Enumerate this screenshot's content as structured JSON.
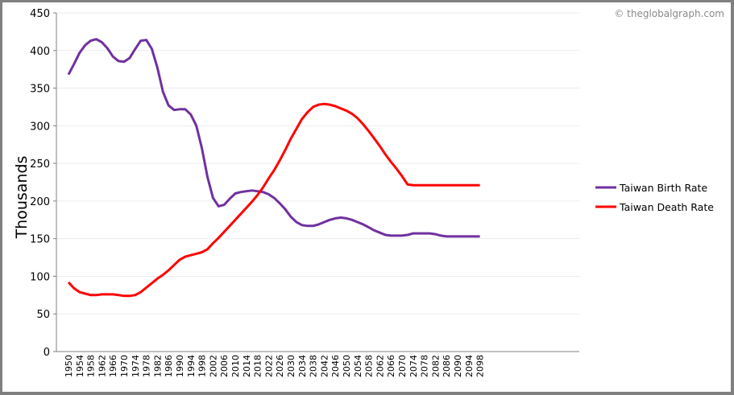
{
  "credit": "© theglobalgraph.com",
  "colors": {
    "birth": "#7030A0",
    "death": "#FF0000",
    "grid": "#EBEBEB",
    "axis": "#808080",
    "frame": "#808080"
  },
  "legend": [
    {
      "label": "Taiwan Birth Rate",
      "color": "#7030A0"
    },
    {
      "label": "Taiwan Death Rate",
      "color": "#FF0000"
    }
  ],
  "chart_data": {
    "type": "line",
    "title": "",
    "xlabel": "",
    "ylabel": "Thousands",
    "ylim": [
      0,
      450
    ],
    "yticks": [
      0,
      50,
      100,
      150,
      200,
      250,
      300,
      350,
      400,
      450
    ],
    "xticks": [
      "1950",
      "1954",
      "1958",
      "1962",
      "1966",
      "1970",
      "1974",
      "1978",
      "1982",
      "1986",
      "1990",
      "1994",
      "1998",
      "2002",
      "2006",
      "2010",
      "2014",
      "2018",
      "2022",
      "2026",
      "2030",
      "2034",
      "2038",
      "2042",
      "2046",
      "2050",
      "2054",
      "2058",
      "2062",
      "2066",
      "2070",
      "2074",
      "2078",
      "2082",
      "2086",
      "2090",
      "2094",
      "2098"
    ],
    "grid": true,
    "legend_position": "right",
    "x": [
      1950,
      1952,
      1954,
      1956,
      1958,
      1960,
      1962,
      1964,
      1966,
      1968,
      1970,
      1972,
      1974,
      1976,
      1978,
      1980,
      1982,
      1984,
      1986,
      1988,
      1990,
      1992,
      1994,
      1996,
      1998,
      2000,
      2002,
      2004,
      2006,
      2008,
      2010,
      2012,
      2014,
      2016,
      2018,
      2020,
      2022,
      2024,
      2026,
      2028,
      2030,
      2032,
      2034,
      2036,
      2038,
      2040,
      2042,
      2044,
      2046,
      2048,
      2050,
      2052,
      2054,
      2056,
      2058,
      2060,
      2062,
      2064,
      2066,
      2068,
      2070,
      2072,
      2074,
      2076,
      2078,
      2080,
      2082,
      2084,
      2086,
      2088,
      2090,
      2092,
      2094,
      2096,
      2098,
      2100
    ],
    "series": [
      {
        "name": "Taiwan Birth Rate",
        "values": [
          368,
          382,
          397,
          407,
          413,
          415,
          411,
          403,
          392,
          386,
          385,
          390,
          402,
          413,
          414,
          402,
          377,
          345,
          327,
          321,
          322,
          322,
          315,
          300,
          270,
          232,
          204,
          193,
          195,
          203,
          210,
          212,
          213,
          214,
          213,
          212,
          209,
          204,
          197,
          189,
          179,
          172,
          168,
          167,
          167,
          169,
          172,
          175,
          177,
          178,
          177,
          175,
          172,
          169,
          165,
          161,
          158,
          155,
          154,
          154,
          154,
          155,
          157,
          157,
          157,
          157,
          156,
          154,
          153,
          153,
          153,
          153,
          153,
          153,
          153,
          153
        ]
      },
      {
        "name": "Taiwan Death Rate",
        "values": [
          92,
          84,
          79,
          77,
          75,
          75,
          76,
          76,
          76,
          75,
          74,
          74,
          75,
          79,
          85,
          91,
          97,
          102,
          108,
          115,
          122,
          126,
          128,
          130,
          132,
          136,
          144,
          151,
          159,
          167,
          175,
          183,
          191,
          199,
          208,
          218,
          230,
          241,
          254,
          268,
          283,
          296,
          309,
          318,
          325,
          328,
          329,
          328,
          326,
          323,
          320,
          316,
          310,
          302,
          293,
          283,
          273,
          262,
          252,
          243,
          233,
          222,
          221,
          221,
          221,
          221,
          221,
          221,
          221,
          221,
          221,
          221,
          221,
          221,
          221,
          221
        ]
      }
    ]
  }
}
